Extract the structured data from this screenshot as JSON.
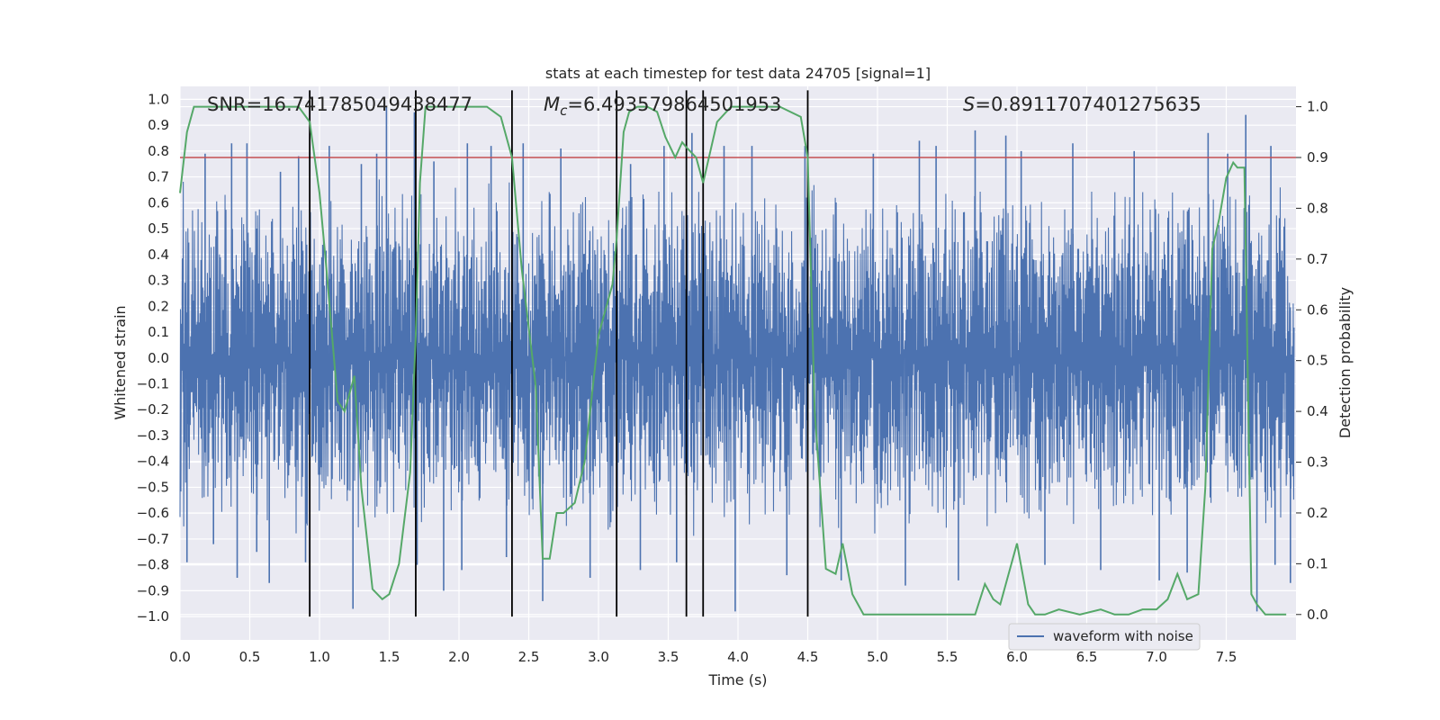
{
  "chart_data": {
    "type": "line",
    "title": "stats at each timestep for test data 24705 [signal=1]",
    "xlabel": "Time (s)",
    "ylabel_left": "Whitened strain",
    "ylabel_right": "Detection probability",
    "xlim": [
      0.0,
      8.0
    ],
    "ylim_left": [
      -1.09,
      1.05
    ],
    "ylim_right": [
      -0.05,
      1.04
    ],
    "xticks": [
      "0.0",
      "0.5",
      "1.0",
      "1.5",
      "2.0",
      "2.5",
      "3.0",
      "3.5",
      "4.0",
      "4.5",
      "5.0",
      "5.5",
      "6.0",
      "6.5",
      "7.0",
      "7.5"
    ],
    "xtick_values": [
      0.0,
      0.5,
      1.0,
      1.5,
      2.0,
      2.5,
      3.0,
      3.5,
      4.0,
      4.5,
      5.0,
      5.5,
      6.0,
      6.5,
      7.0,
      7.5
    ],
    "yticks_left": [
      "1.0",
      "0.9",
      "0.8",
      "0.7",
      "0.6",
      "0.5",
      "0.4",
      "0.3",
      "0.2",
      "0.1",
      "0.0",
      "−0.1",
      "−0.2",
      "−0.3",
      "−0.4",
      "−0.5",
      "−0.6",
      "−0.7",
      "−0.8",
      "−0.9",
      "−1.0"
    ],
    "ytick_values_left": [
      1.0,
      0.9,
      0.8,
      0.7,
      0.6,
      0.5,
      0.4,
      0.3,
      0.2,
      0.1,
      0.0,
      -0.1,
      -0.2,
      -0.3,
      -0.4,
      -0.5,
      -0.6,
      -0.7,
      -0.8,
      -0.9,
      -1.0
    ],
    "yticks_right": [
      "1.0",
      "0.9",
      "0.8",
      "0.7",
      "0.6",
      "0.5",
      "0.4",
      "0.3",
      "0.2",
      "0.1",
      "0.0"
    ],
    "ytick_values_right": [
      1.0,
      0.9,
      0.8,
      0.7,
      0.6,
      0.5,
      0.4,
      0.3,
      0.2,
      0.1,
      0.0
    ],
    "grid": true,
    "annotations": {
      "snr": "SNR=16.741785049438477",
      "mc_symbol": "M",
      "mc_sub": "c",
      "mc_value": "=6.493579864501953",
      "s_symbol": "S",
      "s_value": "=0.8911707401275635"
    },
    "threshold": {
      "value": 0.9,
      "axis": "right",
      "color": "#c44e52"
    },
    "segment_lines": {
      "x": [
        0.93,
        1.69,
        2.38,
        3.13,
        3.63,
        3.75,
        4.5
      ],
      "y_top": 1.0,
      "y_bottom": -1.0,
      "color": "#000000"
    },
    "waveform": {
      "name": "waveform with noise",
      "color": "#4c72b0",
      "axis": "left",
      "envelope_description": "dense noisy strain, amplitude mostly between -0.6 and 0.6 with spikes to about +/-0.95",
      "spikes": [
        {
          "x": 0.05,
          "y": -0.79
        },
        {
          "x": 0.18,
          "y": 0.79
        },
        {
          "x": 0.24,
          "y": -0.72
        },
        {
          "x": 0.37,
          "y": 0.83
        },
        {
          "x": 0.41,
          "y": -0.85
        },
        {
          "x": 0.48,
          "y": 0.83
        },
        {
          "x": 0.55,
          "y": -0.75
        },
        {
          "x": 0.64,
          "y": -0.87
        },
        {
          "x": 0.72,
          "y": 0.72
        },
        {
          "x": 0.85,
          "y": 0.78
        },
        {
          "x": 0.9,
          "y": -0.79
        },
        {
          "x": 1.07,
          "y": 0.82
        },
        {
          "x": 1.24,
          "y": -0.97
        },
        {
          "x": 1.3,
          "y": 0.75
        },
        {
          "x": 1.41,
          "y": 0.79
        },
        {
          "x": 1.48,
          "y": 0.97
        },
        {
          "x": 1.68,
          "y": 0.95
        },
        {
          "x": 1.7,
          "y": -0.8
        },
        {
          "x": 1.82,
          "y": 0.76
        },
        {
          "x": 1.89,
          "y": -0.9
        },
        {
          "x": 2.02,
          "y": -0.82
        },
        {
          "x": 2.06,
          "y": 0.83
        },
        {
          "x": 2.23,
          "y": 0.82
        },
        {
          "x": 2.34,
          "y": -0.77
        },
        {
          "x": 2.46,
          "y": 0.83
        },
        {
          "x": 2.6,
          "y": -0.94
        },
        {
          "x": 2.73,
          "y": 0.81
        },
        {
          "x": 2.94,
          "y": -0.85
        },
        {
          "x": 3.23,
          "y": 0.75
        },
        {
          "x": 3.3,
          "y": -0.82
        },
        {
          "x": 3.47,
          "y": 0.82
        },
        {
          "x": 3.56,
          "y": -0.79
        },
        {
          "x": 3.67,
          "y": 0.87
        },
        {
          "x": 3.9,
          "y": 0.82
        },
        {
          "x": 3.98,
          "y": -0.98
        },
        {
          "x": 4.1,
          "y": 0.82
        },
        {
          "x": 4.35,
          "y": -0.84
        },
        {
          "x": 4.48,
          "y": 0.82
        },
        {
          "x": 4.74,
          "y": -0.86
        },
        {
          "x": 4.97,
          "y": 0.79
        },
        {
          "x": 5.2,
          "y": -0.88
        },
        {
          "x": 5.3,
          "y": 0.84
        },
        {
          "x": 5.42,
          "y": 0.82
        },
        {
          "x": 5.58,
          "y": -0.86
        },
        {
          "x": 5.7,
          "y": 0.88
        },
        {
          "x": 5.92,
          "y": 0.86
        },
        {
          "x": 6.03,
          "y": 0.8
        },
        {
          "x": 6.2,
          "y": -0.8
        },
        {
          "x": 6.4,
          "y": 0.83
        },
        {
          "x": 6.6,
          "y": -0.82
        },
        {
          "x": 6.84,
          "y": 0.8
        },
        {
          "x": 7.02,
          "y": -0.86
        },
        {
          "x": 7.22,
          "y": -0.83
        },
        {
          "x": 7.37,
          "y": 0.87
        },
        {
          "x": 7.51,
          "y": 0.79
        },
        {
          "x": 7.64,
          "y": 0.94
        },
        {
          "x": 7.72,
          "y": -0.98
        },
        {
          "x": 7.82,
          "y": 0.82
        },
        {
          "x": 7.85,
          "y": -0.8
        },
        {
          "x": 7.96,
          "y": -0.87
        }
      ]
    },
    "probability": {
      "name": "detection probability",
      "color": "#55a868",
      "axis": "right",
      "x": [
        0.0,
        0.05,
        0.1,
        0.15,
        0.85,
        0.93,
        1.0,
        1.05,
        1.13,
        1.18,
        1.25,
        1.3,
        1.38,
        1.45,
        1.5,
        1.57,
        1.65,
        1.69,
        1.72,
        1.76,
        1.85,
        2.2,
        2.3,
        2.38,
        2.45,
        2.55,
        2.6,
        2.65,
        2.7,
        2.75,
        2.83,
        2.9,
        3.0,
        3.05,
        3.1,
        3.13,
        3.18,
        3.22,
        3.28,
        3.35,
        3.42,
        3.48,
        3.55,
        3.6,
        3.63,
        3.7,
        3.75,
        3.85,
        3.95,
        4.3,
        4.45,
        4.5,
        4.55,
        4.63,
        4.7,
        4.75,
        4.82,
        4.9,
        5.1,
        5.3,
        5.5,
        5.7,
        5.77,
        5.83,
        5.88,
        5.93,
        6.0,
        6.08,
        6.13,
        6.2,
        6.3,
        6.45,
        6.6,
        6.7,
        6.8,
        6.9,
        7.0,
        7.08,
        7.15,
        7.22,
        7.3,
        7.35,
        7.4,
        7.45,
        7.5,
        7.55,
        7.58,
        7.63,
        7.68,
        7.72,
        7.78,
        7.85,
        7.93
      ],
      "y": [
        0.83,
        0.95,
        1.0,
        1.0,
        1.0,
        0.97,
        0.83,
        0.68,
        0.42,
        0.4,
        0.47,
        0.25,
        0.05,
        0.03,
        0.04,
        0.1,
        0.28,
        0.55,
        0.85,
        1.0,
        1.0,
        1.0,
        0.98,
        0.9,
        0.68,
        0.45,
        0.11,
        0.11,
        0.2,
        0.2,
        0.22,
        0.3,
        0.55,
        0.6,
        0.65,
        0.74,
        0.95,
        0.99,
        1.0,
        1.0,
        0.99,
        0.94,
        0.9,
        0.93,
        0.92,
        0.9,
        0.85,
        0.97,
        1.0,
        1.0,
        0.98,
        0.9,
        0.4,
        0.09,
        0.08,
        0.14,
        0.04,
        0.0,
        0.0,
        0.0,
        0.0,
        0.0,
        0.06,
        0.03,
        0.02,
        0.07,
        0.14,
        0.02,
        0.0,
        0.0,
        0.01,
        0.0,
        0.01,
        0.0,
        0.0,
        0.01,
        0.01,
        0.03,
        0.08,
        0.03,
        0.04,
        0.25,
        0.72,
        0.78,
        0.86,
        0.89,
        0.88,
        0.88,
        0.04,
        0.02,
        0.0,
        0.0,
        0.0
      ]
    },
    "legend": {
      "label": "waveform with noise",
      "position": "lower-right"
    }
  }
}
